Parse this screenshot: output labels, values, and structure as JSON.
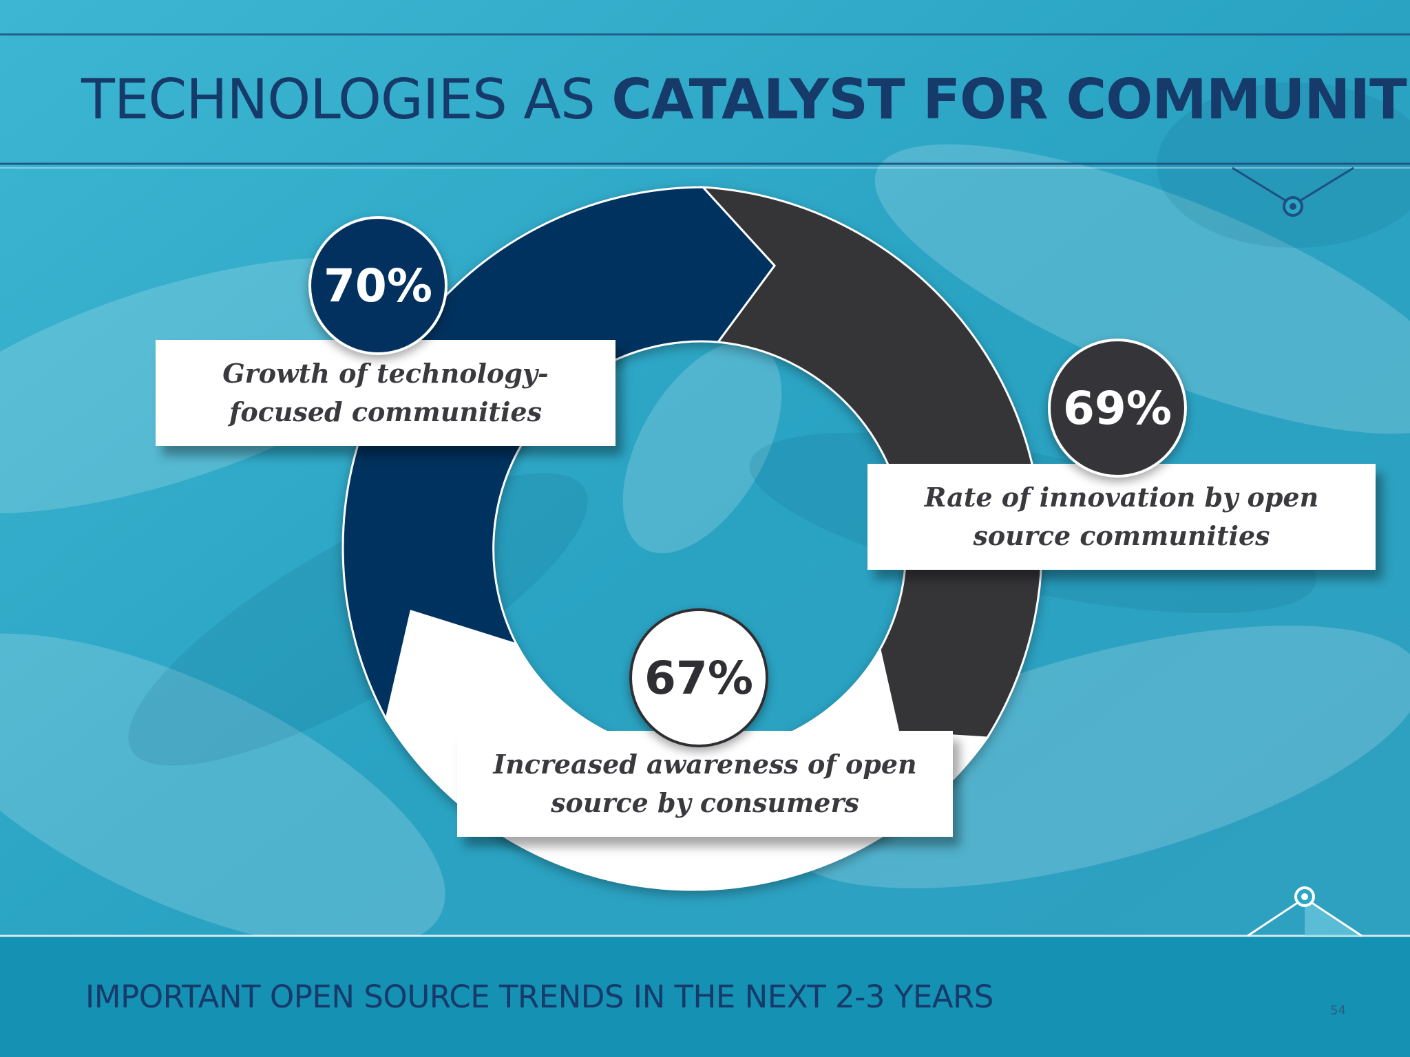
{
  "slide": {
    "title_regular": "TECHNOLOGIES AS ",
    "title_bold": "CATALYST FOR COMMUNITIES",
    "footer": "IMPORTANT OPEN SOURCE TRENDS IN THE NEXT 2-3 YEARS",
    "page_number": "54"
  },
  "diagram": {
    "items": [
      {
        "percent": "70%",
        "label_line1": "Growth of technology-",
        "label_line2": "focused communities",
        "color": "#03315f"
      },
      {
        "percent": "69%",
        "label_line1": "Rate of innovation by open",
        "label_line2": "source communities",
        "color": "#353539"
      },
      {
        "percent": "67%",
        "label_line1": "Increased awareness of open",
        "label_line2": "source by consumers",
        "color": "#ffffff"
      }
    ]
  },
  "colors": {
    "background": "#2ba6c5",
    "title": "#163a6a",
    "navy_segment": "#03315f",
    "dark_segment": "#353539",
    "white_segment": "#ffffff"
  }
}
